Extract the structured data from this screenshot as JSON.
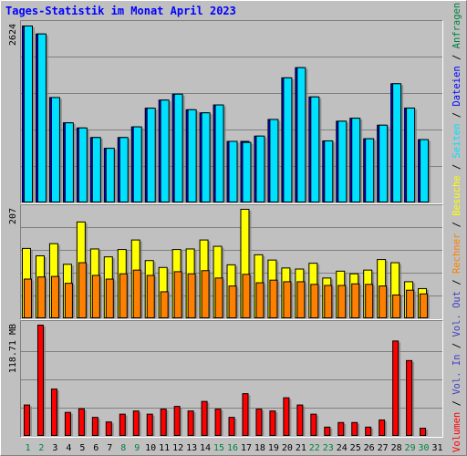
{
  "chart_data": {
    "type": "bar",
    "title": "Tages-Statistik im Monat April 2023",
    "categories": [
      "1",
      "2",
      "3",
      "4",
      "5",
      "6",
      "7",
      "8",
      "9",
      "10",
      "11",
      "12",
      "13",
      "14",
      "15",
      "16",
      "17",
      "18",
      "19",
      "20",
      "21",
      "22",
      "23",
      "24",
      "25",
      "26",
      "27",
      "28",
      "29",
      "30",
      "31"
    ],
    "weekend_days": [
      "1",
      "2",
      "8",
      "9",
      "15",
      "16",
      "22",
      "23",
      "29",
      "30"
    ],
    "panels": [
      {
        "id": "top",
        "max_label": "2624",
        "ymax": 2624,
        "series": [
          {
            "name": "Anfragen",
            "color": "#008040",
            "values": [
              2624,
              2506,
              1563,
              1188,
              1112,
              970,
              810,
              970,
              1128,
              1405,
              1525,
              1613,
              1382,
              1336,
              1453,
              913,
              913,
              991,
              1238,
              1855,
              2006,
              1572,
              920,
              1212,
              1256,
              952,
              1153,
              1768,
              1407,
              939,
              null
            ]
          },
          {
            "name": "Dateien",
            "color": "#0000ff",
            "values": [
              2624,
              2506,
              1563,
              1188,
              1112,
              970,
              810,
              970,
              1128,
              1405,
              1525,
              1613,
              1382,
              1336,
              1453,
              913,
              913,
              991,
              1238,
              1855,
              2006,
              1572,
              920,
              1212,
              1256,
              952,
              1153,
              1768,
              1407,
              939,
              null
            ]
          },
          {
            "name": "Seiten",
            "color": "#00e0ff",
            "values": [
              2624,
              2506,
              1563,
              1188,
              1112,
              970,
              810,
              970,
              1128,
              1405,
              1525,
              1613,
              1382,
              1336,
              1453,
              913,
              897,
              991,
              1238,
              1855,
              2006,
              1572,
              920,
              1212,
              1256,
              952,
              1153,
              1768,
              1407,
              939,
              null
            ]
          }
        ]
      },
      {
        "id": "middle",
        "max_label": "207",
        "ymax": 207,
        "series": [
          {
            "name": "Besuche",
            "color": "#ffff00",
            "values": [
              133,
              119,
              142,
              103,
              183,
              132,
              117,
              131,
              149,
              110,
              97,
              131,
              132,
              149,
              137,
              102,
              207,
              121,
              111,
              96,
              94,
              105,
              77,
              90,
              85,
              92,
              112,
              106,
              70,
              57,
              null
            ]
          },
          {
            "name": "Rechner",
            "color": "#ff8000",
            "values": [
              75,
              79,
              80,
              67,
              106,
              82,
              75,
              85,
              92,
              82,
              51,
              89,
              85,
              91,
              77,
              62,
              84,
              68,
              73,
              70,
              70,
              65,
              63,
              63,
              66,
              65,
              62,
              45,
              54,
              47,
              null
            ]
          }
        ]
      },
      {
        "id": "bottom",
        "max_label": "118.71 MB",
        "ymax": 118.71,
        "series": [
          {
            "name": "Volumen",
            "color": "#ff0000",
            "values": [
              33.5,
              118.71,
              50.5,
              25.6,
              29.5,
              20.3,
              15.4,
              23.7,
              27.1,
              23.7,
              29.1,
              32.0,
              27.1,
              37.3,
              29.1,
              20.3,
              45.6,
              29.1,
              27.1,
              41.2,
              33.5,
              23.7,
              9.9,
              14.8,
              14.8,
              9.9,
              17.5,
              101.8,
              80.9,
              8.7,
              null
            ]
          }
        ]
      }
    ],
    "legend": {
      "placement": "right",
      "items": [
        {
          "label": "Volumen",
          "color": "#ff0000"
        },
        {
          "label": "Vol. In",
          "color": "#4040c0"
        },
        {
          "label": "Vol. Out",
          "color": "#4040c0"
        },
        {
          "label": "Rechner",
          "color": "#ff8000"
        },
        {
          "label": "Besuche",
          "color": "#ffff00"
        },
        {
          "label": "Seiten",
          "color": "#00e0ff"
        },
        {
          "label": "Dateien",
          "color": "#0000ff"
        },
        {
          "label": "Anfragen",
          "color": "#008040"
        }
      ]
    },
    "grid": true
  }
}
